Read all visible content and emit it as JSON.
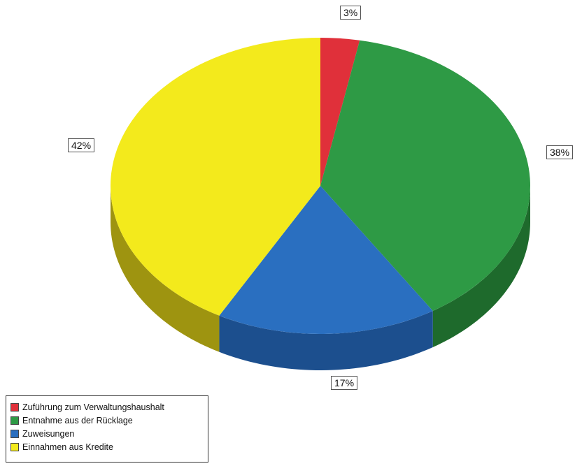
{
  "chart_data": {
    "type": "pie",
    "title": "",
    "slices": [
      {
        "name": "Zuführung zum Verwaltungshaushalt",
        "value": 3,
        "label": "3%",
        "color": "#e0303a",
        "side_color": "#8e1c24"
      },
      {
        "name": "Entnahme aus der Rücklage",
        "value": 38,
        "label": "38%",
        "color": "#2e9a45",
        "side_color": "#1e6a2c"
      },
      {
        "name": "Zuweisungen",
        "value": 17,
        "label": "17%",
        "color": "#2a6fc0",
        "side_color": "#1c4f8e"
      },
      {
        "name": "Einnahmen aus Kredite",
        "value": 42,
        "label": "42%",
        "color": "#f3ea1c",
        "side_color": "#9e9410"
      }
    ],
    "legend_position": "bottom-left",
    "start": "top",
    "direction": "clockwise",
    "style": "3d"
  }
}
